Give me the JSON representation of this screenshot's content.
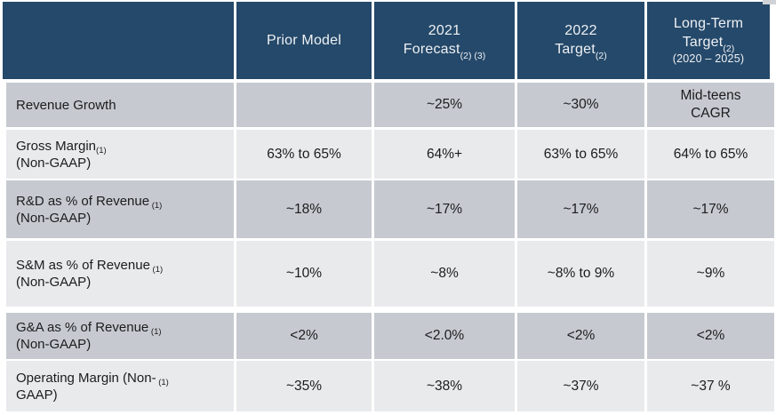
{
  "colors": {
    "page_bg": "#ffffff",
    "header_bg": "#25496a",
    "header_text": "#eef1f4",
    "row_dark_bg": "#c6cad0",
    "row_light_bg": "#e9eaec",
    "body_text": "#1c1c1e",
    "edge_artifact": "#cfd3d7"
  },
  "table": {
    "header": [
      {
        "line1": "",
        "line2": "",
        "sub": "",
        "note": ""
      },
      {
        "line1": "Prior Model",
        "line2": "",
        "sub": "",
        "note": ""
      },
      {
        "line1": "2021",
        "line2": "Forecast",
        "sub": "(2) (3)",
        "note": ""
      },
      {
        "line1": "2022",
        "line2": "Target",
        "sub": "(2)",
        "note": ""
      },
      {
        "line1": "Long-Term",
        "line2": "Target",
        "sub": "(2)",
        "note": "(2020 – 2025)"
      }
    ],
    "rows": [
      {
        "label": "Revenue Growth",
        "sup": "",
        "values": [
          "",
          "~25%",
          "~30%",
          "Mid-teens\nCAGR"
        ]
      },
      {
        "label": "Gross Margin\n(Non-GAAP)",
        "sup": "(1)",
        "values": [
          "63% to 65%",
          "64%+",
          "63% to 65%",
          "64% to 65%"
        ]
      },
      {
        "label": "R&D as % of Revenue\n(Non-GAAP)",
        "sup": " (1)",
        "values": [
          "~18%",
          "~17%",
          "~17%",
          "~17%"
        ]
      },
      {
        "label": "S&M as % of Revenue\n(Non-GAAP)",
        "sup": " (1)",
        "values": [
          "~10%",
          "~8%",
          "~8% to 9%",
          "~9%"
        ]
      },
      {
        "label": "G&A as % of Revenue\n(Non-GAAP)",
        "sup": " (1)",
        "values": [
          "<2%",
          "<2.0%",
          "<2%",
          "<2%"
        ]
      },
      {
        "label": "Operating Margin (Non-\nGAAP)",
        "sup": " (1)",
        "values": [
          "~35%",
          "~38%",
          "~37%",
          "~37 %"
        ]
      }
    ]
  }
}
